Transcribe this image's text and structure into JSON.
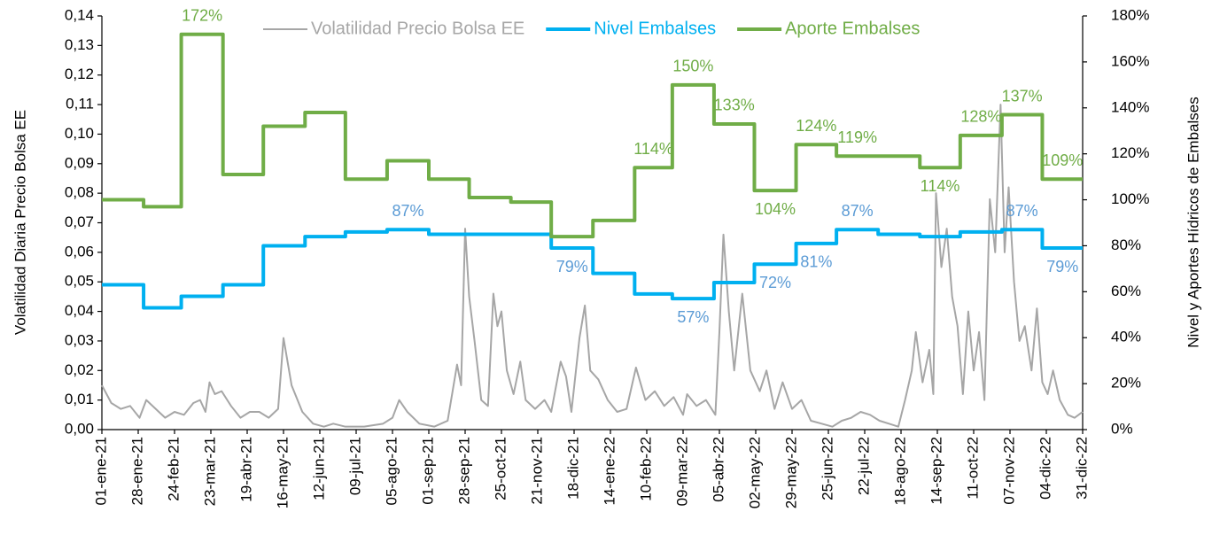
{
  "chart_data": {
    "type": "line",
    "y_label": "Volatilidad Diaria Precio Bolsa EE",
    "y2_label": "Nivel y Aportes Hídricos de Embalses",
    "xlim": [
      "01-ene-21",
      "31-dic-22"
    ],
    "xticks": [
      "01-ene-21",
      "28-ene-21",
      "24-feb-21",
      "23-mar-21",
      "19-abr-21",
      "16-may-21",
      "12-jun-21",
      "09-jul-21",
      "05-ago-21",
      "01-sep-21",
      "28-sep-21",
      "25-oct-21",
      "21-nov-21",
      "18-dic-21",
      "14-ene-22",
      "10-feb-22",
      "09-mar-22",
      "05-abr-22",
      "02-may-22",
      "29-may-22",
      "25-jun-22",
      "22-jul-22",
      "18-ago-22",
      "14-sep-22",
      "11-oct-22",
      "07-nov-22",
      "04-dic-22",
      "31-dic-22"
    ],
    "ylim": [
      0,
      0.14
    ],
    "yticks": [
      {
        "value": 0,
        "label": "0,00"
      },
      {
        "value": 0.01,
        "label": "0,01"
      },
      {
        "value": 0.02,
        "label": "0,02"
      },
      {
        "value": 0.03,
        "label": "0,03"
      },
      {
        "value": 0.04,
        "label": "0,04"
      },
      {
        "value": 0.05,
        "label": "0,05"
      },
      {
        "value": 0.06,
        "label": "0,06"
      },
      {
        "value": 0.07,
        "label": "0,07"
      },
      {
        "value": 0.08,
        "label": "0,08"
      },
      {
        "value": 0.09,
        "label": "0,09"
      },
      {
        "value": 0.1,
        "label": "0,10"
      },
      {
        "value": 0.11,
        "label": "0,11"
      },
      {
        "value": 0.12,
        "label": "0,12"
      },
      {
        "value": 0.13,
        "label": "0,13"
      },
      {
        "value": 0.14,
        "label": "0,14"
      }
    ],
    "y2lim": [
      0,
      180
    ],
    "y2ticks": [
      {
        "value": 0,
        "label": "0%"
      },
      {
        "value": 20,
        "label": "20%"
      },
      {
        "value": 40,
        "label": "40%"
      },
      {
        "value": 60,
        "label": "60%"
      },
      {
        "value": 80,
        "label": "80%"
      },
      {
        "value": 100,
        "label": "100%"
      },
      {
        "value": 120,
        "label": "120%"
      },
      {
        "value": 140,
        "label": "140%"
      },
      {
        "value": 160,
        "label": "160%"
      },
      {
        "value": 180,
        "label": "180%"
      }
    ],
    "series": [
      {
        "name": "Volatilidad Precio Bolsa EE",
        "color": "#a6a6a6",
        "step": false,
        "x": [
          "01-ene-21",
          "08-ene-21",
          "15-ene-21",
          "22-ene-21",
          "29-ene-21",
          "03-feb-21",
          "10-feb-21",
          "17-feb-21",
          "24-feb-21",
          "03-mar-21",
          "10-mar-21",
          "15-mar-21",
          "19-mar-21",
          "22-mar-21",
          "26-mar-21",
          "31-mar-21",
          "07-abr-21",
          "14-abr-21",
          "21-abr-21",
          "28-abr-21",
          "05-may-21",
          "12-may-21",
          "16-may-21",
          "22-may-21",
          "30-may-21",
          "07-jun-21",
          "15-jun-21",
          "22-jun-21",
          "01-jul-21",
          "15-jul-21",
          "29-jul-21",
          "05-ago-21",
          "10-ago-21",
          "16-ago-21",
          "25-ago-21",
          "05-sep-21",
          "15-sep-21",
          "22-sep-21",
          "25-sep-21",
          "28-sep-21",
          "01-oct-21",
          "05-oct-21",
          "10-oct-21",
          "15-oct-21",
          "19-oct-21",
          "22-oct-21",
          "25-oct-21",
          "29-oct-21",
          "03-nov-21",
          "08-nov-21",
          "12-nov-21",
          "19-nov-21",
          "26-nov-21",
          "01-dic-21",
          "08-dic-21",
          "12-dic-21",
          "16-dic-21",
          "22-dic-21",
          "26-dic-21",
          "30-dic-21",
          "05-ene-22",
          "12-ene-22",
          "19-ene-22",
          "26-ene-22",
          "02-feb-22",
          "09-feb-22",
          "16-feb-22",
          "23-feb-22",
          "02-mar-22",
          "09-mar-22",
          "12-mar-22",
          "19-mar-22",
          "26-mar-22",
          "02-abr-22",
          "05-abr-22",
          "08-abr-22",
          "12-abr-22",
          "16-abr-22",
          "22-abr-22",
          "28-abr-22",
          "05-may-22",
          "10-may-22",
          "16-may-22",
          "22-may-22",
          "29-may-22",
          "05-jun-22",
          "12-jun-22",
          "20-jun-22",
          "28-jun-22",
          "05-jul-22",
          "12-jul-22",
          "19-jul-22",
          "26-jul-22",
          "02-ago-22",
          "09-ago-22",
          "16-ago-22",
          "21-ago-22",
          "26-ago-22",
          "29-ago-22",
          "03-sep-22",
          "08-sep-22",
          "11-sep-22",
          "13-sep-22",
          "17-sep-22",
          "21-sep-22",
          "25-sep-22",
          "29-sep-22",
          "03-oct-22",
          "07-oct-22",
          "11-oct-22",
          "15-oct-22",
          "19-oct-22",
          "23-oct-22",
          "27-oct-22",
          "31-oct-22",
          "03-nov-22",
          "06-nov-22",
          "10-nov-22",
          "14-nov-22",
          "18-nov-22",
          "23-nov-22",
          "27-nov-22",
          "01-dic-22",
          "05-dic-22",
          "09-dic-22",
          "14-dic-22",
          "20-dic-22",
          "25-dic-22",
          "31-dic-22"
        ],
        "values": [
          0.015,
          0.009,
          0.007,
          0.008,
          0.004,
          0.01,
          0.007,
          0.004,
          0.006,
          0.005,
          0.009,
          0.01,
          0.006,
          0.016,
          0.012,
          0.013,
          0.008,
          0.004,
          0.006,
          0.006,
          0.004,
          0.007,
          0.031,
          0.015,
          0.006,
          0.002,
          0.001,
          0.002,
          0.001,
          0.001,
          0.002,
          0.004,
          0.01,
          0.006,
          0.002,
          0.001,
          0.003,
          0.022,
          0.015,
          0.068,
          0.045,
          0.03,
          0.01,
          0.008,
          0.046,
          0.035,
          0.04,
          0.02,
          0.012,
          0.023,
          0.01,
          0.007,
          0.01,
          0.006,
          0.023,
          0.018,
          0.006,
          0.031,
          0.042,
          0.02,
          0.017,
          0.01,
          0.006,
          0.007,
          0.021,
          0.01,
          0.013,
          0.008,
          0.011,
          0.005,
          0.012,
          0.008,
          0.01,
          0.005,
          0.033,
          0.066,
          0.04,
          0.02,
          0.046,
          0.02,
          0.013,
          0.02,
          0.007,
          0.016,
          0.007,
          0.01,
          0.003,
          0.002,
          0.001,
          0.003,
          0.004,
          0.006,
          0.005,
          0.003,
          0.002,
          0.001,
          0.01,
          0.02,
          0.033,
          0.016,
          0.027,
          0.012,
          0.08,
          0.055,
          0.068,
          0.045,
          0.035,
          0.012,
          0.04,
          0.02,
          0.033,
          0.01,
          0.078,
          0.06,
          0.11,
          0.06,
          0.082,
          0.05,
          0.03,
          0.035,
          0.02,
          0.041,
          0.016,
          0.012,
          0.02,
          0.01,
          0.005,
          0.004,
          0.006
        ]
      },
      {
        "name": "Nivel Embalses",
        "color": "#00b0f0",
        "label_color": "#5b9bd5",
        "axis": "y2",
        "step": true,
        "x": [
          "01-ene-21",
          "01-feb-21",
          "01-mar-21",
          "01-abr-21",
          "01-may-21",
          "01-jun-21",
          "01-jul-21",
          "01-ago-21",
          "01-sep-21",
          "01-oct-21",
          "01-nov-21",
          "01-dic-21",
          "01-ene-22",
          "01-feb-22",
          "01-mar-22",
          "01-abr-22",
          "01-may-22",
          "01-jun-22",
          "01-jul-22",
          "01-ago-22",
          "01-sep-22",
          "01-oct-22",
          "01-nov-22",
          "01-dic-22",
          "31-dic-22"
        ],
        "values": [
          63,
          53,
          58,
          63,
          80,
          84,
          86,
          87,
          85,
          85,
          85,
          79,
          68,
          59,
          57,
          64,
          72,
          81,
          87,
          85,
          84,
          86,
          87,
          79,
          79
        ],
        "value_labels": [
          null,
          null,
          null,
          null,
          null,
          null,
          null,
          "87%",
          null,
          null,
          null,
          "79%",
          null,
          null,
          "57%",
          null,
          "72%",
          "81%",
          "87%",
          null,
          null,
          null,
          "87%",
          "79%",
          null
        ]
      },
      {
        "name": "Aporte Embalses",
        "color": "#70ad47",
        "label_color": "#70ad47",
        "axis": "y2",
        "step": true,
        "x": [
          "01-ene-21",
          "01-feb-21",
          "01-mar-21",
          "01-abr-21",
          "01-may-21",
          "01-jun-21",
          "01-jul-21",
          "01-ago-21",
          "01-sep-21",
          "01-oct-21",
          "01-nov-21",
          "01-dic-21",
          "01-ene-22",
          "01-feb-22",
          "01-mar-22",
          "01-abr-22",
          "01-may-22",
          "01-jun-22",
          "01-jul-22",
          "01-ago-22",
          "01-sep-22",
          "01-oct-22",
          "01-nov-22",
          "01-dic-22",
          "31-dic-22"
        ],
        "values": [
          100,
          97,
          172,
          111,
          132,
          138,
          109,
          117,
          109,
          101,
          99,
          84,
          91,
          114,
          150,
          133,
          104,
          124,
          119,
          119,
          114,
          128,
          137,
          109,
          109
        ],
        "value_labels": [
          null,
          null,
          "172%",
          null,
          null,
          null,
          null,
          null,
          null,
          null,
          null,
          null,
          null,
          "114%",
          "150%",
          "133%",
          "104%",
          "124%",
          "119%",
          null,
          "114%",
          "128%",
          "137%",
          "109%",
          null
        ]
      }
    ]
  }
}
